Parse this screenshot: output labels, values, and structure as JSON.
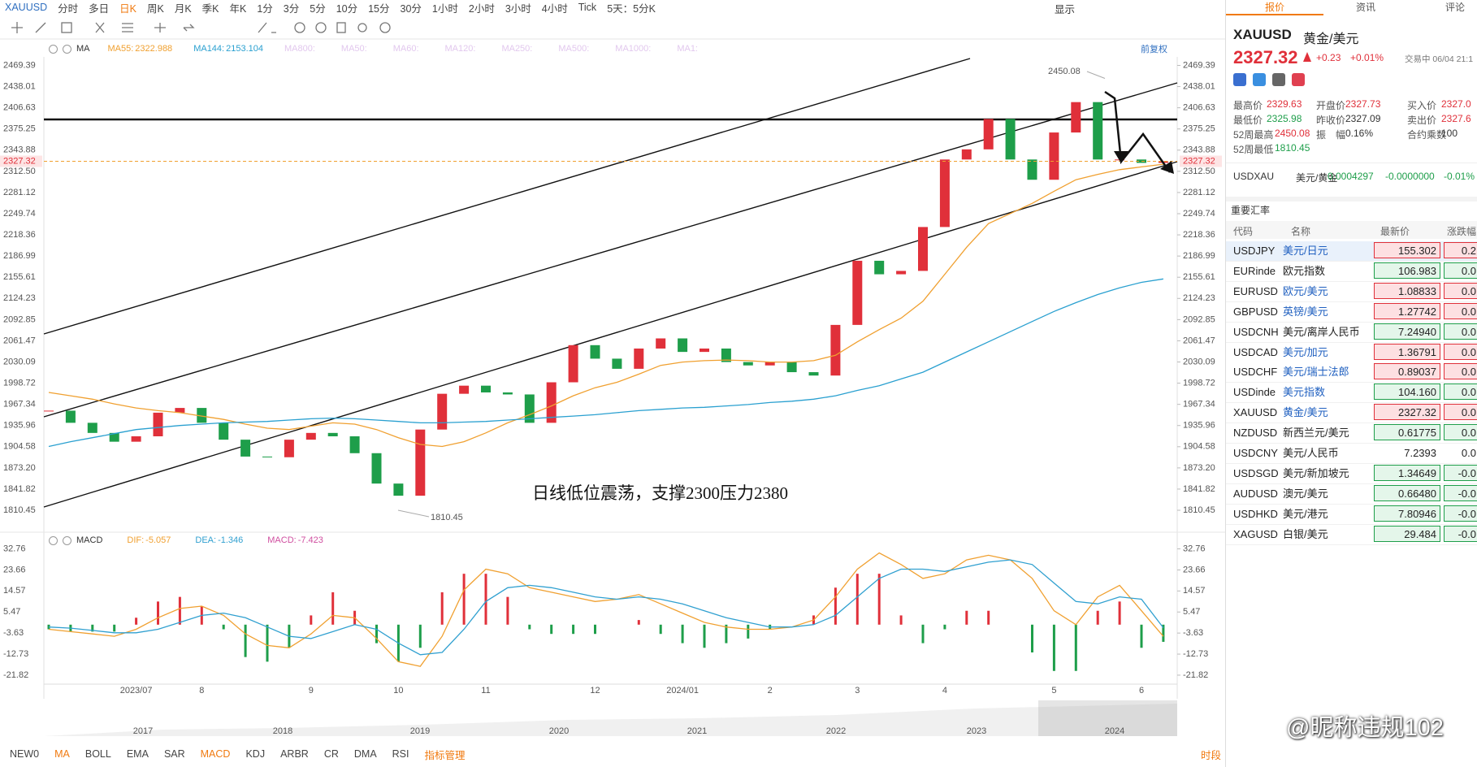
{
  "toolbar": {
    "symbol": "XAUUSD",
    "periods": [
      "分时",
      "多日",
      "日K",
      "周K",
      "月K",
      "季K",
      "年K",
      "1分",
      "3分",
      "5分",
      "10分",
      "15分",
      "30分",
      "1小时",
      "2小时",
      "3小时",
      "4小时",
      "Tick",
      "5天：5分K"
    ],
    "active_index": 2,
    "display": "显示"
  },
  "indicator_bar": {
    "ma_label": "MA",
    "faded": [
      "MA800:",
      "MA50:",
      "MA60:",
      "MA120:",
      "MA250:",
      "MA500:",
      "MA1000:",
      "MA1:"
    ],
    "adjust": "前复权",
    "macd_label": "MACD"
  },
  "chart_data": [
    {
      "type": "candlestick",
      "up_color": "#e0303a",
      "down_color": "#1e9e4a",
      "categories": [
        null,
        null,
        null,
        null,
        "2023/07",
        null,
        null,
        "8",
        null,
        null,
        null,
        null,
        "9",
        null,
        null,
        null,
        "10",
        null,
        null,
        null,
        "11",
        null,
        null,
        null,
        null,
        "12",
        null,
        null,
        null,
        "2024/01",
        null,
        null,
        null,
        "2",
        null,
        null,
        null,
        "3",
        null,
        null,
        null,
        "4",
        null,
        null,
        null,
        null,
        "5",
        null,
        null,
        null,
        "6",
        null
      ],
      "series": [
        {
          "values": [
            1958,
            1940,
            1925,
            1912,
            1920,
            1955,
            1962,
            1940,
            1915,
            1890,
            1889,
            1915,
            1925,
            1920,
            1895,
            1850,
            1832,
            1930,
            1983,
            1995,
            1985,
            1982,
            1940,
            2000,
            2055,
            2035,
            2020,
            2050,
            2065,
            2045,
            2050,
            2030,
            2025,
            2030,
            2015,
            2010,
            2085,
            2180,
            2160,
            2165,
            2230,
            2330,
            2345,
            2390,
            2330,
            2300,
            2370,
            2415,
            2330,
            2330,
            2325,
            2327.32
          ]
        },
        {
          "name": "MA55:",
          "color": "#f0a030",
          "values": [
            1985,
            1980,
            1975,
            1968,
            1962,
            1958,
            1955,
            1950,
            1945,
            1938,
            1932,
            1930,
            1935,
            1940,
            1938,
            1930,
            1918,
            1908,
            1905,
            1912,
            1925,
            1940,
            1952,
            1965,
            1980,
            1992,
            2000,
            2012,
            2025,
            2030,
            2032,
            2033,
            2032,
            2030,
            2030,
            2032,
            2040,
            2060,
            2078,
            2095,
            2120,
            2160,
            2200,
            2235,
            2250,
            2265,
            2283,
            2300,
            2308,
            2315,
            2319,
            2322.988
          ]
        },
        {
          "name": "MA144:",
          "color": "#2aa0d0",
          "values": [
            1905,
            1912,
            1918,
            1924,
            1930,
            1933,
            1936,
            1938,
            1940,
            1941,
            1942,
            1944,
            1946,
            1947,
            1946,
            1944,
            1942,
            1940,
            1940,
            1941,
            1942,
            1944,
            1946,
            1948,
            1950,
            1952,
            1955,
            1958,
            1960,
            1962,
            1963,
            1965,
            1967,
            1970,
            1972,
            1975,
            1980,
            1988,
            1995,
            2005,
            2015,
            2030,
            2045,
            2060,
            2075,
            2090,
            2105,
            2118,
            2130,
            2140,
            2148,
            2153.104
          ]
        }
      ],
      "ylim": [
        1784,
        2482
      ],
      "yticks": [
        2469.39,
        2438.01,
        2406.63,
        2375.25,
        2343.88,
        {
          "value": 2312.5,
          "label": "2312.50"
        },
        2281.12,
        2249.74,
        2218.36,
        2186.99,
        2155.61,
        2124.23,
        2092.85,
        2061.47,
        2030.09,
        1998.72,
        1967.34,
        1935.96,
        1904.58,
        {
          "value": 1873.2,
          "label": "1873.20"
        },
        1841.82,
        1810.45
      ],
      "high_label": 2450.08,
      "low_label": 1810.45,
      "annotation": "日线低位震荡，支撑2300压力2380"
    },
    {
      "type": "macd",
      "up_color": "#e0303a",
      "down_color": "#1e9e4a",
      "series": [
        {
          "name": "DIF:",
          "color": "#f0a030",
          "style": "line",
          "values": [
            -2,
            -3,
            -4,
            -5,
            -2,
            3,
            7,
            8,
            4,
            -4,
            -9,
            -10,
            -4,
            4,
            3,
            -6,
            -16,
            -18,
            -5,
            15,
            24,
            22,
            16,
            14,
            12,
            10,
            11,
            13,
            9,
            5,
            1,
            -1,
            -2,
            -2,
            -1,
            2,
            12,
            24,
            31,
            26,
            20,
            22,
            28,
            30,
            28,
            20,
            6,
            0,
            12,
            17,
            6,
            -5.057
          ]
        },
        {
          "name": "DEA:",
          "color": "#30a0d0",
          "style": "line",
          "values": [
            -1,
            -1.5,
            -2.5,
            -3.5,
            -3.5,
            -2,
            1,
            4,
            5,
            3,
            -1,
            -5,
            -6,
            -3,
            0,
            -2,
            -8,
            -13,
            -12,
            -2,
            10,
            16,
            17,
            16,
            14,
            12,
            11,
            12,
            11,
            9,
            6,
            3,
            1,
            -1,
            -1,
            0,
            4,
            12,
            20,
            24,
            24,
            23,
            25,
            27,
            28,
            26,
            18,
            10,
            9,
            12,
            11,
            -1.346
          ]
        },
        {
          "name": "MACD:",
          "color": "#d04fa0",
          "style": "bar",
          "values": [
            -2,
            -3,
            -3,
            -3,
            3,
            10,
            12,
            8,
            -2,
            -14,
            -16,
            -10,
            4,
            14,
            6,
            -8,
            -16,
            -10,
            14,
            22,
            22,
            12,
            -2,
            -4,
            -4,
            -4,
            0,
            2,
            -4,
            -8,
            -10,
            -8,
            -6,
            -2,
            0,
            4,
            16,
            22,
            22,
            4,
            -8,
            -2,
            6,
            6,
            0,
            -12,
            -20,
            -20,
            6,
            10,
            -10,
            -7.423
          ]
        }
      ],
      "ylim": [
        -25,
        34
      ],
      "yticks": [
        32.76,
        23.66,
        14.57,
        5.47,
        -3.63,
        -12.73,
        -21.82
      ]
    }
  ],
  "navigator": {
    "years": [
      "2017",
      "2018",
      "2019",
      "2020",
      "2021",
      "2022",
      "2023",
      "2024"
    ]
  },
  "bottom_tabs": {
    "items": [
      "NEW0",
      "MA",
      "BOLL",
      "EMA",
      "SAR",
      "MACD",
      "KDJ",
      "ARBR",
      "CR",
      "DMA",
      "RSI",
      "指标管理"
    ],
    "highlighted": [
      1,
      5,
      11
    ],
    "right": "时段"
  },
  "right_panel": {
    "tabs": [
      "报价",
      "资讯",
      "评论"
    ],
    "symbol": "XAUUSD",
    "name": "黄金/美元",
    "price": "2327.32",
    "change": "+0.23",
    "change_pct": "+0.01%",
    "status": "交易中 06/04 21:1",
    "stats": [
      {
        "label": "最高价",
        "value": "2329.63",
        "trend": "up"
      },
      {
        "label": "开盘价",
        "value": "2327.73",
        "trend": "up"
      },
      {
        "label": "买入价",
        "value": "2327.0",
        "trend": "up"
      },
      {
        "label": "最低价",
        "value": "2325.98",
        "trend": "down"
      },
      {
        "label": "昨收价",
        "value": "2327.09",
        "trend": "flat"
      },
      {
        "label": "卖出价",
        "value": "2327.6",
        "trend": "up"
      },
      {
        "label": "52周最高",
        "value": "2450.08",
        "trend": "up"
      },
      {
        "label": "振　幅",
        "value": "0.16%",
        "trend": "flat"
      },
      {
        "label": "合约乘数",
        "value": "100",
        "trend": "flat"
      },
      {
        "label": "52周最低",
        "value": "1810.45",
        "trend": "down"
      }
    ],
    "inverse": {
      "code": "USDXAU",
      "name": "美元/黄金",
      "price": "0.0004297",
      "change": "-0.0000000",
      "change_pct": "-0.01%"
    },
    "section": "重要汇率",
    "columns": [
      "代码",
      "名称",
      "最新价",
      "涨跌幅"
    ],
    "rows": [
      {
        "code": "USDJPY",
        "name": "美元/日元",
        "price": "155.302",
        "change": "0.2",
        "trend": "up",
        "link": true
      },
      {
        "code": "EURinde",
        "name": "欧元指数",
        "price": "106.983",
        "change": "0.0",
        "trend": "down",
        "link": false
      },
      {
        "code": "EURUSD",
        "name": "欧元/美元",
        "price": "1.08833",
        "change": "0.0",
        "trend": "up",
        "link": true
      },
      {
        "code": "GBPUSD",
        "name": "英镑/美元",
        "price": "1.27742",
        "change": "0.0",
        "trend": "up",
        "link": true
      },
      {
        "code": "USDCNH",
        "name": "美元/离岸人民币",
        "price": "7.24940",
        "change": "0.0",
        "trend": "down",
        "link": false
      },
      {
        "code": "USDCAD",
        "name": "美元/加元",
        "price": "1.36791",
        "change": "0.0",
        "trend": "up",
        "link": true
      },
      {
        "code": "USDCHF",
        "name": "美元/瑞士法郎",
        "price": "0.89037",
        "change": "0.0",
        "trend": "up",
        "link": true
      },
      {
        "code": "USDinde",
        "name": "美元指数",
        "price": "104.160",
        "change": "0.0",
        "trend": "down",
        "link": true
      },
      {
        "code": "XAUUSD",
        "name": "黄金/美元",
        "price": "2327.32",
        "change": "0.0",
        "trend": "up",
        "link": true
      },
      {
        "code": "NZDUSD",
        "name": "新西兰元/美元",
        "price": "0.61775",
        "change": "0.0",
        "trend": "down",
        "link": false
      },
      {
        "code": "USDCNY",
        "name": "美元/人民币",
        "price": "7.2393",
        "change": "0.0",
        "trend": "flat",
        "link": false
      },
      {
        "code": "USDSGD",
        "name": "美元/新加坡元",
        "price": "1.34649",
        "change": "-0.0",
        "trend": "down",
        "link": false
      },
      {
        "code": "AUDUSD",
        "name": "澳元/美元",
        "price": "0.66480",
        "change": "-0.0",
        "trend": "down",
        "link": false
      },
      {
        "code": "USDHKD",
        "name": "美元/港元",
        "price": "7.80946",
        "change": "-0.0",
        "trend": "down",
        "link": false
      },
      {
        "code": "XAGUSD",
        "name": "白银/美元",
        "price": "29.484",
        "change": "-0.0",
        "trend": "down",
        "link": false
      }
    ]
  },
  "watermark": "@昵称违规102"
}
